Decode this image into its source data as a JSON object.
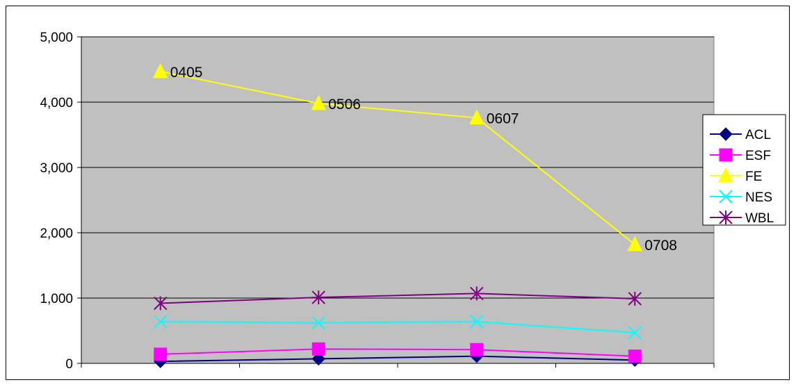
{
  "chart_data": {
    "type": "line",
    "title": "",
    "xlabel": "",
    "ylabel": "",
    "x": [
      "",
      "",
      "",
      ""
    ],
    "ylim": [
      0,
      5000
    ],
    "yticks": [
      0,
      1000,
      2000,
      3000,
      4000,
      5000
    ],
    "ytick_labels": [
      "0",
      "1,000",
      "2,000",
      "3,000",
      "4,000",
      "5,000"
    ],
    "grid": "horizontal",
    "plot_background": "#c0c0c0",
    "legend_position": "right",
    "series": [
      {
        "name": "ACL",
        "values": [
          30,
          70,
          110,
          50
        ],
        "color": "#000080",
        "marker": "diamond"
      },
      {
        "name": "ESF",
        "values": [
          140,
          220,
          210,
          110
        ],
        "color": "#ff00ff",
        "marker": "square"
      },
      {
        "name": "FE",
        "values": [
          4470,
          3980,
          3760,
          1820
        ],
        "color": "#ffff00",
        "marker": "triangle",
        "point_labels": [
          "0405",
          "0506",
          "0607",
          "0708"
        ]
      },
      {
        "name": "NES",
        "values": [
          640,
          620,
          640,
          470
        ],
        "color": "#00ffff",
        "marker": "x"
      },
      {
        "name": "WBL",
        "values": [
          920,
          1010,
          1070,
          990
        ],
        "color": "#800080",
        "marker": "star"
      }
    ]
  }
}
